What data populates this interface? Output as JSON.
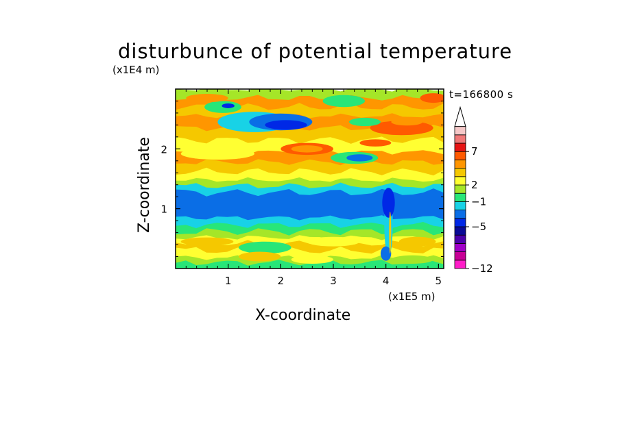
{
  "chart_data": {
    "type": "heatmap",
    "subtype": "filled-contour",
    "title": "disturbunce of potential temperature",
    "xlabel": "X-coordinate",
    "ylabel": "Z-coordinate",
    "x_unit": "(x1E5 m)",
    "y_unit": "(x1E4 m)",
    "annotation": "t=166800 s",
    "xlim": [
      0,
      5.1
    ],
    "ylim": [
      0,
      3.0
    ],
    "xticks": [
      "1",
      "2",
      "3",
      "4",
      "5"
    ],
    "xtick_values": [
      1,
      2,
      3,
      4,
      5
    ],
    "yticks": [
      "1",
      "2"
    ],
    "ytick_values": [
      1,
      2
    ],
    "grid": false,
    "colorbar": {
      "placement": "right",
      "extend_top": true,
      "colors": [
        "#ff1cc8",
        "#c80096",
        "#a000c8",
        "#4b00aa",
        "#0a0a96",
        "#0028e6",
        "#0a6ee6",
        "#18d2e6",
        "#28e678",
        "#a5e628",
        "#ffff32",
        "#f5c800",
        "#ff9600",
        "#ff5a00",
        "#e61414",
        "#f07878",
        "#f5c8c8"
      ],
      "labels": [
        {
          "text": "−12",
          "level": 0
        },
        {
          "text": "−5",
          "level": 5
        },
        {
          "text": "−1",
          "level": 8
        },
        {
          "text": "2",
          "level": 10
        },
        {
          "text": "7",
          "level": 14
        }
      ]
    },
    "bands": [
      {
        "z_top": 3.0,
        "class": 9
      },
      {
        "z_top": 2.85,
        "class": 12
      },
      {
        "z_top": 2.7,
        "class": 11
      },
      {
        "z_top": 2.55,
        "class": 12
      },
      {
        "z_top": 2.35,
        "class": 11
      },
      {
        "z_top": 2.15,
        "class": 10
      },
      {
        "z_top": 1.95,
        "class": 12
      },
      {
        "z_top": 1.78,
        "class": 11
      },
      {
        "z_top": 1.62,
        "class": 10
      },
      {
        "z_top": 1.48,
        "class": 9
      },
      {
        "z_top": 1.38,
        "class": 7
      },
      {
        "z_top": 1.27,
        "class": 6
      },
      {
        "z_top": 0.85,
        "class": 7
      },
      {
        "z_top": 0.73,
        "class": 8
      },
      {
        "z_top": 0.62,
        "class": 9
      },
      {
        "z_top": 0.52,
        "class": 10
      },
      {
        "z_top": 0.42,
        "class": 11
      },
      {
        "z_top": 0.3,
        "class": 10
      },
      {
        "z_top": 0.18,
        "class": 9
      },
      {
        "z_top": 0.1,
        "class": 8
      }
    ],
    "features": [
      {
        "x": 1.5,
        "z": 2.45,
        "rx": 0.7,
        "rz": 0.17,
        "class": 7
      },
      {
        "x": 0.9,
        "z": 2.7,
        "rx": 0.35,
        "rz": 0.1,
        "class": 8
      },
      {
        "x": 2.0,
        "z": 2.45,
        "rx": 0.6,
        "rz": 0.14,
        "class": 6
      },
      {
        "x": 2.1,
        "z": 2.4,
        "rx": 0.4,
        "rz": 0.08,
        "class": 5
      },
      {
        "x": 1.0,
        "z": 2.72,
        "rx": 0.12,
        "rz": 0.04,
        "class": 5
      },
      {
        "x": 0.8,
        "z": 1.92,
        "rx": 0.7,
        "rz": 0.1,
        "class": 10
      },
      {
        "x": 2.5,
        "z": 2.0,
        "rx": 0.5,
        "rz": 0.1,
        "class": 13
      },
      {
        "x": 2.5,
        "z": 2.0,
        "rx": 0.3,
        "rz": 0.06,
        "class": 12
      },
      {
        "x": 4.3,
        "z": 2.35,
        "rx": 0.6,
        "rz": 0.12,
        "class": 13
      },
      {
        "x": 4.4,
        "z": 2.45,
        "rx": 0.3,
        "rz": 0.06,
        "class": 12
      },
      {
        "x": 3.4,
        "z": 1.85,
        "rx": 0.45,
        "rz": 0.1,
        "class": 8
      },
      {
        "x": 3.5,
        "z": 1.85,
        "rx": 0.25,
        "rz": 0.06,
        "class": 6
      },
      {
        "x": 3.6,
        "z": 2.45,
        "rx": 0.3,
        "rz": 0.07,
        "class": 8
      },
      {
        "x": 3.8,
        "z": 2.1,
        "rx": 0.3,
        "rz": 0.06,
        "class": 13
      },
      {
        "x": 4.9,
        "z": 2.85,
        "rx": 0.25,
        "rz": 0.08,
        "class": 13
      },
      {
        "x": 0.6,
        "z": 2.85,
        "rx": 0.4,
        "rz": 0.07,
        "class": 12
      },
      {
        "x": 3.2,
        "z": 2.8,
        "rx": 0.4,
        "rz": 0.1,
        "class": 8
      },
      {
        "x": 4.05,
        "z": 0.75,
        "rx": 0.08,
        "rz": 0.55,
        "class": 7
      },
      {
        "x": 4.05,
        "z": 1.1,
        "rx": 0.12,
        "rz": 0.25,
        "class": 5
      },
      {
        "x": 4.0,
        "z": 0.25,
        "rx": 0.1,
        "rz": 0.12,
        "class": 6
      },
      {
        "x": 4.08,
        "z": 0.6,
        "rx": 0.02,
        "rz": 0.35,
        "class": 11
      },
      {
        "x": 1.7,
        "z": 0.35,
        "rx": 0.5,
        "rz": 0.1,
        "class": 8
      },
      {
        "x": 1.6,
        "z": 0.2,
        "rx": 0.4,
        "rz": 0.08,
        "class": 11
      },
      {
        "x": 3.0,
        "z": 0.45,
        "rx": 0.5,
        "rz": 0.08,
        "class": 10
      },
      {
        "x": 2.6,
        "z": 0.15,
        "rx": 0.4,
        "rz": 0.07,
        "class": 10
      },
      {
        "x": 0.6,
        "z": 0.45,
        "rx": 0.5,
        "rz": 0.07,
        "class": 11
      },
      {
        "x": 4.6,
        "z": 0.45,
        "rx": 0.35,
        "rz": 0.08,
        "class": 11
      },
      {
        "x": 4.5,
        "z": 0.15,
        "rx": 0.4,
        "rz": 0.07,
        "class": 9
      }
    ]
  }
}
